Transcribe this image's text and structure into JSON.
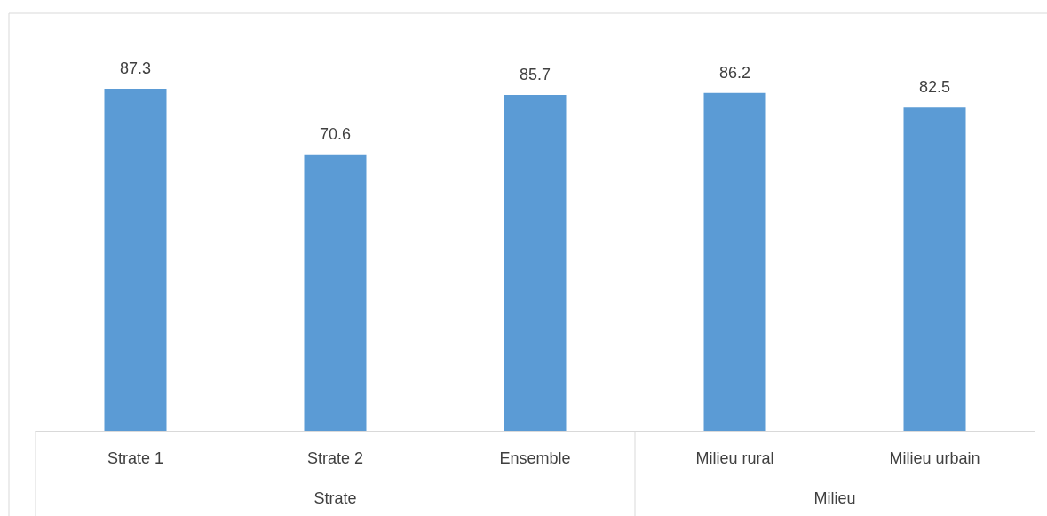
{
  "chart_data": {
    "type": "bar",
    "categories": [
      "Strate 1",
      "Strate 2",
      "Ensemble",
      "Milieu rural",
      "Milieu urbain"
    ],
    "values": [
      87.3,
      70.6,
      85.7,
      86.2,
      82.5
    ],
    "color": "#5b9bd5",
    "data_labels": true,
    "annotations": [
      "Strate",
      "Milieu"
    ]
  }
}
